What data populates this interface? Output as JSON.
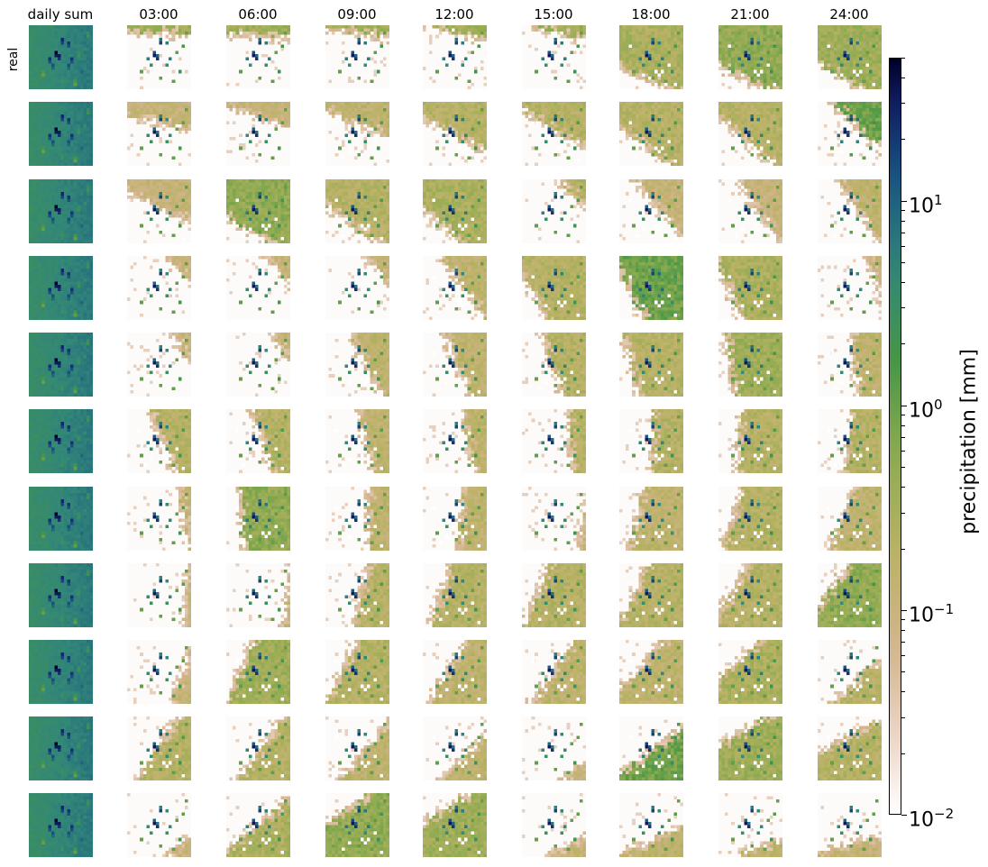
{
  "chart_data": {
    "type": "heatmap",
    "columns": [
      "daily sum",
      "03:00",
      "06:00",
      "09:00",
      "12:00",
      "15:00",
      "18:00",
      "21:00",
      "24:00"
    ],
    "row_labels": [
      "real",
      "",
      "",
      "",
      "",
      "",
      "",
      "",
      "",
      "",
      ""
    ],
    "colorbar": {
      "label": "precipitation [mm]",
      "scale": "log",
      "range": [
        0.01,
        50
      ],
      "ticks": [
        {
          "value": 0.01,
          "base": "10",
          "exp": "−2"
        },
        {
          "value": 0.1,
          "base": "10",
          "exp": "−1"
        },
        {
          "value": 1,
          "base": "10",
          "exp": "0"
        },
        {
          "value": 10,
          "base": "10",
          "exp": "1"
        }
      ],
      "colormap": "gist_earth_r"
    },
    "panel_coverage": [
      [
        1.0,
        0.05,
        0.1,
        0.05,
        0.05,
        0.04,
        0.95,
        0.95,
        0.95
      ],
      [
        1.0,
        0.3,
        0.2,
        0.35,
        0.55,
        0.45,
        0.8,
        0.7,
        0.35
      ],
      [
        1.0,
        0.45,
        0.95,
        0.8,
        0.9,
        0.05,
        0.4,
        0.4,
        0.4
      ],
      [
        1.0,
        0.02,
        0.02,
        0.02,
        0.4,
        0.95,
        0.95,
        0.95,
        0.03
      ],
      [
        1.0,
        0.0,
        0.0,
        0.4,
        0.5,
        0.6,
        0.95,
        0.95,
        0.45
      ],
      [
        1.0,
        0.5,
        0.5,
        0.4,
        0.3,
        0.25,
        0.55,
        0.8,
        0.6
      ],
      [
        1.0,
        0.08,
        0.9,
        0.35,
        0.45,
        0.01,
        0.85,
        0.9,
        0.7
      ],
      [
        1.0,
        0.04,
        0.01,
        0.5,
        0.85,
        0.9,
        0.9,
        0.9,
        0.95
      ],
      [
        1.0,
        0.15,
        0.9,
        0.85,
        0.7,
        0.6,
        0.8,
        0.9,
        0.35
      ],
      [
        1.0,
        0.6,
        0.55,
        0.45,
        0.35,
        0.01,
        0.55,
        0.95,
        0.8
      ],
      [
        1.0,
        0.03,
        0.6,
        0.95,
        0.95,
        0.1,
        0.3,
        0.1,
        0.2
      ]
    ],
    "panel_intensity": [
      [
        1.5,
        0.5,
        0.5,
        0.5,
        0.5,
        0.5,
        0.4,
        0.6,
        0.5
      ],
      [
        1.5,
        0.1,
        0.1,
        0.2,
        0.3,
        0.3,
        0.3,
        0.3,
        0.8
      ],
      [
        1.5,
        0.1,
        0.6,
        0.3,
        0.4,
        0.3,
        0.1,
        0.1,
        0.2
      ],
      [
        1.5,
        0.1,
        0.1,
        0.1,
        0.2,
        0.3,
        0.8,
        0.4,
        0.1
      ],
      [
        1.5,
        0.1,
        0.1,
        0.2,
        0.2,
        0.3,
        0.3,
        0.5,
        0.2
      ],
      [
        1.5,
        0.3,
        0.3,
        0.2,
        0.2,
        0.3,
        0.3,
        0.3,
        0.3
      ],
      [
        1.5,
        0.1,
        0.6,
        0.2,
        0.2,
        0.1,
        0.2,
        0.3,
        0.2
      ],
      [
        1.5,
        0.1,
        0.1,
        0.3,
        0.3,
        0.3,
        0.3,
        0.3,
        0.6
      ],
      [
        1.5,
        0.1,
        0.5,
        0.3,
        0.2,
        0.2,
        0.2,
        0.4,
        0.3
      ],
      [
        1.5,
        0.3,
        0.3,
        0.2,
        0.2,
        0.1,
        0.8,
        0.5,
        0.3
      ],
      [
        1.5,
        0.1,
        0.4,
        0.6,
        0.5,
        0.1,
        0.2,
        0.2,
        0.1
      ]
    ]
  }
}
